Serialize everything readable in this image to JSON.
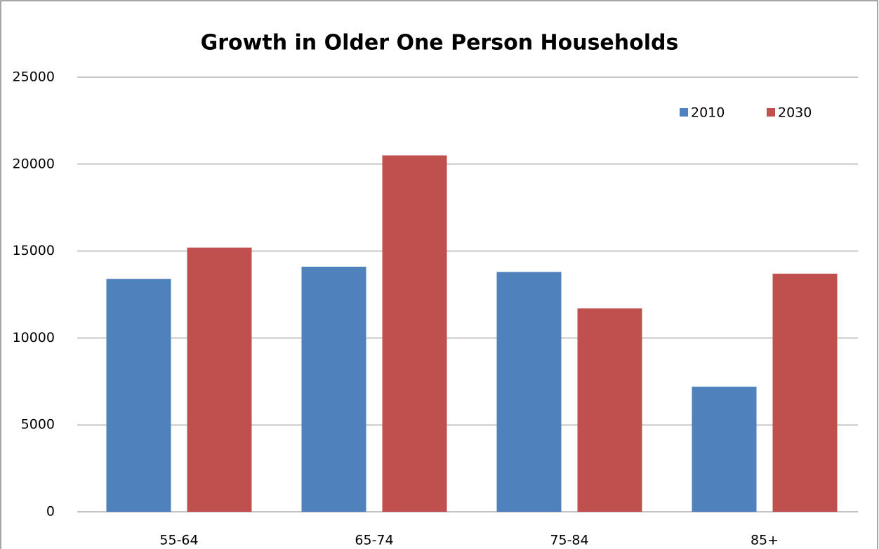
{
  "chart_data": {
    "type": "bar",
    "title": "Growth in Older One Person Households",
    "categories": [
      "55-64",
      "65-74",
      "75-84",
      "85+"
    ],
    "series": [
      {
        "name": "2010",
        "color": "#4f81bd",
        "values": [
          13400,
          14100,
          13800,
          7200
        ]
      },
      {
        "name": "2030",
        "color": "#c0504d",
        "values": [
          15200,
          20500,
          11700,
          13700
        ]
      }
    ],
    "ylim": [
      0,
      25000
    ],
    "yticks": [
      0,
      5000,
      10000,
      15000,
      20000,
      25000
    ],
    "grid": true,
    "legend": "top-right"
  }
}
